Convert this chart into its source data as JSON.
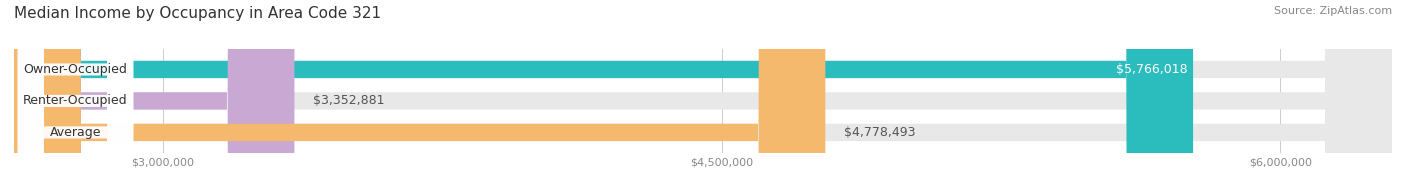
{
  "title": "Median Income by Occupancy in Area Code 321",
  "source": "Source: ZipAtlas.com",
  "categories": [
    "Owner-Occupied",
    "Renter-Occupied",
    "Average"
  ],
  "values": [
    5766018,
    3352881,
    4778493
  ],
  "labels": [
    "$5,766,018",
    "$3,352,881",
    "$4,778,493"
  ],
  "bar_colors": [
    "#2bbcbe",
    "#c9a8d4",
    "#f5b96e"
  ],
  "bar_bg_color": "#e8e8e8",
  "xlim": [
    2600000,
    6300000
  ],
  "xticks": [
    3000000,
    4500000,
    6000000
  ],
  "xtick_labels": [
    "$3,000,000",
    "$4,500,000",
    "$6,000,000"
  ],
  "fig_bg_color": "#ffffff",
  "title_fontsize": 11,
  "source_fontsize": 8,
  "bar_label_fontsize": 9,
  "category_fontsize": 9,
  "tick_fontsize": 8
}
